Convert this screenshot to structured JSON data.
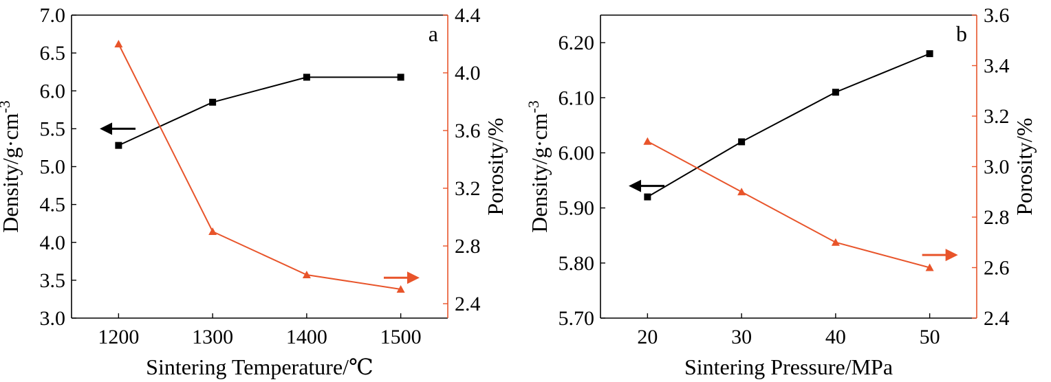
{
  "chart_data": [
    {
      "type": "line",
      "panel_label": "a",
      "xlabel": "Sintering Temperature/℃",
      "x": [
        1200,
        1300,
        1400,
        1500
      ],
      "xticks": [
        1200,
        1300,
        1400,
        1500
      ],
      "xlim": [
        1150,
        1550
      ],
      "ylabel_parts": {
        "main": "Density/g·cm",
        "sup": "-3"
      },
      "ylim": [
        3.0,
        7.0
      ],
      "yticks": [
        3.0,
        3.5,
        4.0,
        4.5,
        5.0,
        5.5,
        6.0,
        6.5,
        7.0
      ],
      "y2label": "Porosity/%",
      "y2lim": [
        2.3,
        4.4
      ],
      "y2ticks": [
        2.4,
        2.8,
        3.2,
        3.6,
        4.0,
        4.4
      ],
      "series": [
        {
          "axis": "left",
          "color": "#000000",
          "marker": "square",
          "values": [
            5.28,
            5.85,
            6.18,
            6.18
          ]
        },
        {
          "axis": "right",
          "color": "#e8542a",
          "marker": "triangle",
          "values": [
            4.2,
            2.9,
            2.6,
            2.5
          ]
        }
      ],
      "arrows": [
        {
          "color": "#000000",
          "direction": "left",
          "x": 1180,
          "y": 5.5,
          "axis": "left"
        },
        {
          "color": "#e8542a",
          "direction": "right",
          "x": 1520,
          "y": 2.58,
          "axis": "right"
        }
      ]
    },
    {
      "type": "line",
      "panel_label": "b",
      "xlabel": "Sintering Pressure/MPa",
      "x": [
        20,
        30,
        40,
        50
      ],
      "xticks": [
        20,
        30,
        40,
        50
      ],
      "xlim": [
        15,
        55
      ],
      "ylabel_parts": {
        "main": "Density/g·cm",
        "sup": "-3"
      },
      "ylim": [
        5.7,
        6.25
      ],
      "yticks": [
        5.7,
        5.8,
        5.9,
        6.0,
        6.1,
        6.2
      ],
      "y2label": "Porosity/%",
      "y2lim": [
        2.4,
        3.6
      ],
      "y2ticks": [
        2.4,
        2.6,
        2.8,
        3.0,
        3.2,
        3.4,
        3.6
      ],
      "series": [
        {
          "axis": "left",
          "color": "#000000",
          "marker": "square",
          "values": [
            5.92,
            6.02,
            6.11,
            6.18
          ]
        },
        {
          "axis": "right",
          "color": "#e8542a",
          "marker": "triangle",
          "values": [
            3.1,
            2.9,
            2.7,
            2.6
          ]
        }
      ],
      "arrows": [
        {
          "color": "#000000",
          "direction": "left",
          "x": 18,
          "y": 5.94,
          "axis": "left"
        },
        {
          "color": "#e8542a",
          "direction": "right",
          "x": 53,
          "y": 2.65,
          "axis": "right"
        }
      ]
    }
  ]
}
